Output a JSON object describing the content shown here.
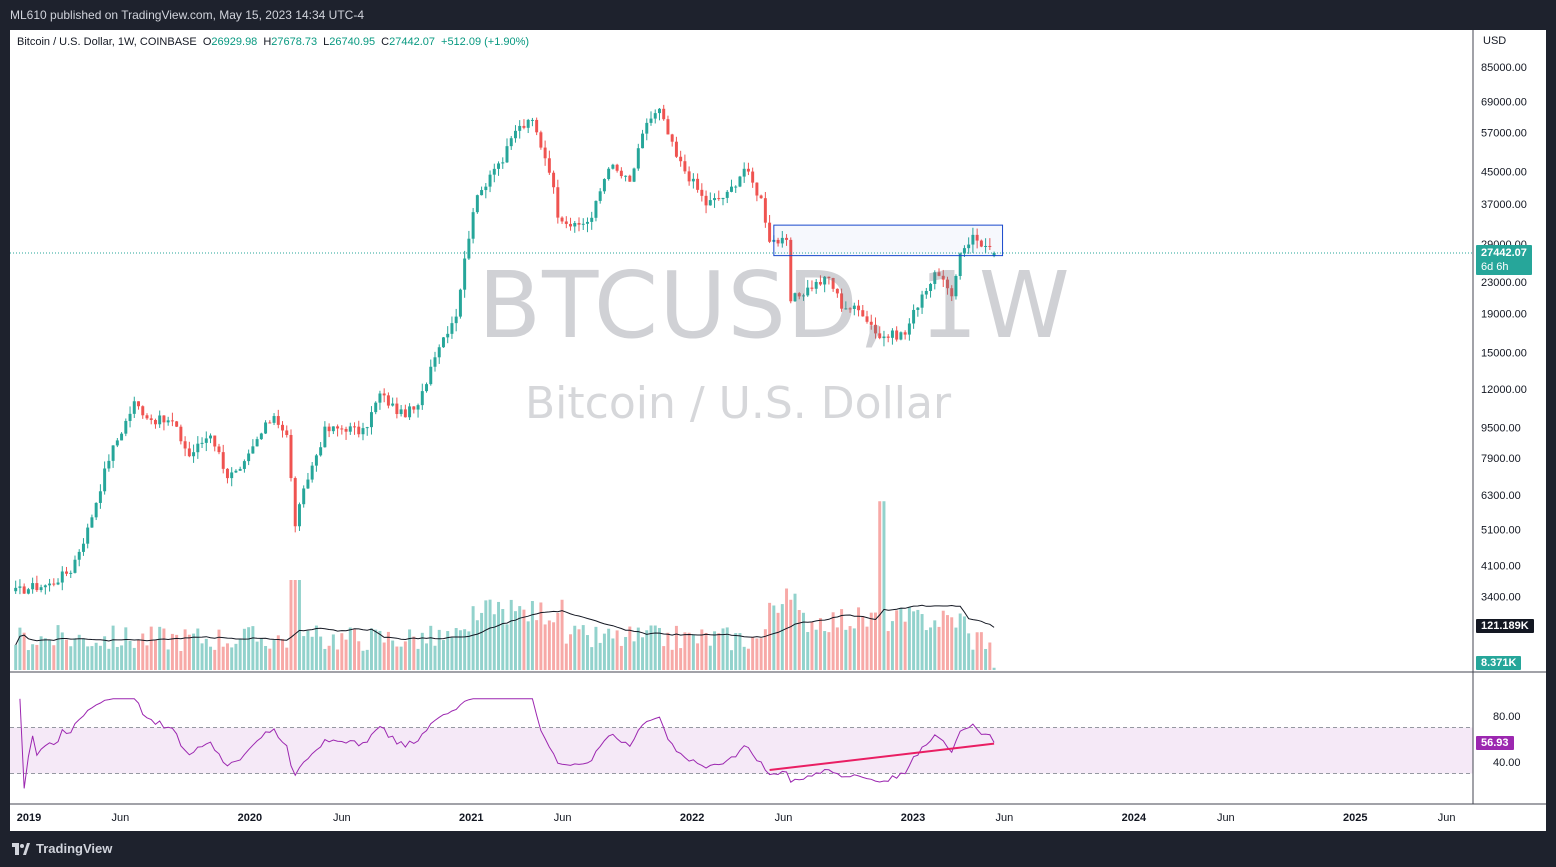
{
  "header": {
    "published": "ML610 published on TradingView.com, May 15, 2023 14:34 UTC-4"
  },
  "legend": {
    "symbol": "Bitcoin / U.S. Dollar, 1W, COINBASE",
    "open_label": "O",
    "open": "26929.98",
    "high_label": "H",
    "high": "27678.73",
    "low_label": "L",
    "low": "26740.95",
    "close_label": "C",
    "close": "27442.07",
    "change": "+512.09 (+1.90%)"
  },
  "watermark": {
    "symbol": "BTCUSD, 1W",
    "name": "Bitcoin / U.S. Dollar"
  },
  "axis": {
    "currency": "USD"
  },
  "badges": {
    "price": "27442.07",
    "countdown": "6d 6h",
    "volume_ma": "121.189K",
    "volume": "8.371K",
    "rsi": "56.93"
  },
  "footer": {
    "brand": "TradingView"
  },
  "colors": {
    "up": "#26a69a",
    "down": "#ef5350",
    "rsi": "#9c27b0",
    "box": "#1848cc",
    "trend": "#e91e63"
  },
  "chart_data": {
    "type": "candlestick",
    "title": "Bitcoin / U.S. Dollar, 1W, COINBASE",
    "ylabel": "USD",
    "y_scale": "log",
    "ylim": [
      2600,
      100000
    ],
    "price_ticks": [
      "85000.00",
      "69000.00",
      "57000.00",
      "45000.00",
      "37000.00",
      "29000.00",
      "23000.00",
      "19000.00",
      "15000.00",
      "12000.00",
      "9500.00",
      "7900.00",
      "6300.00",
      "5100.00",
      "4100.00",
      "3400.00"
    ],
    "time_ticks": [
      "2019",
      "Jun",
      "2020",
      "Jun",
      "2021",
      "Jun",
      "2022",
      "Jun",
      "2023",
      "Jun",
      "2024",
      "Jun",
      "2025",
      "Jun"
    ],
    "rsi_ticks": [
      "80.00",
      "40.00"
    ],
    "rsi_band": [
      30,
      70
    ],
    "close_anchors": [
      {
        "date": "2018-12-10",
        "close": 3500
      },
      {
        "date": "2019-01-07",
        "close": 3600
      },
      {
        "date": "2019-02-04",
        "close": 3650
      },
      {
        "date": "2019-03-11",
        "close": 4000
      },
      {
        "date": "2019-04-08",
        "close": 5100
      },
      {
        "date": "2019-05-13",
        "close": 7900
      },
      {
        "date": "2019-06-24",
        "close": 11000
      },
      {
        "date": "2019-07-22",
        "close": 10000
      },
      {
        "date": "2019-08-26",
        "close": 9800
      },
      {
        "date": "2019-09-23",
        "close": 8000
      },
      {
        "date": "2019-10-28",
        "close": 9200
      },
      {
        "date": "2019-11-25",
        "close": 7100
      },
      {
        "date": "2019-12-16",
        "close": 7200
      },
      {
        "date": "2020-01-13",
        "close": 8800
      },
      {
        "date": "2020-02-10",
        "close": 10300
      },
      {
        "date": "2020-03-02",
        "close": 9000
      },
      {
        "date": "2020-03-16",
        "close": 5300
      },
      {
        "date": "2020-04-06",
        "close": 7000
      },
      {
        "date": "2020-05-04",
        "close": 9300
      },
      {
        "date": "2020-06-08",
        "close": 9500
      },
      {
        "date": "2020-07-06",
        "close": 9200
      },
      {
        "date": "2020-08-03",
        "close": 11600
      },
      {
        "date": "2020-09-07",
        "close": 10300
      },
      {
        "date": "2020-10-05",
        "close": 10700
      },
      {
        "date": "2020-11-02",
        "close": 15000
      },
      {
        "date": "2020-12-07",
        "close": 19000
      },
      {
        "date": "2021-01-04",
        "close": 36000
      },
      {
        "date": "2021-02-08",
        "close": 47000
      },
      {
        "date": "2021-02-22",
        "close": 48000
      },
      {
        "date": "2021-03-15",
        "close": 58000
      },
      {
        "date": "2021-04-12",
        "close": 61000
      },
      {
        "date": "2021-05-10",
        "close": 46000
      },
      {
        "date": "2021-05-24",
        "close": 35000
      },
      {
        "date": "2021-06-21",
        "close": 32000
      },
      {
        "date": "2021-07-19",
        "close": 34000
      },
      {
        "date": "2021-08-16",
        "close": 47000
      },
      {
        "date": "2021-09-20",
        "close": 42000
      },
      {
        "date": "2021-10-18",
        "close": 61000
      },
      {
        "date": "2021-11-08",
        "close": 65000
      },
      {
        "date": "2021-12-06",
        "close": 49000
      },
      {
        "date": "2022-01-03",
        "close": 42000
      },
      {
        "date": "2022-01-24",
        "close": 37000
      },
      {
        "date": "2022-02-28",
        "close": 39000
      },
      {
        "date": "2022-03-28",
        "close": 46000
      },
      {
        "date": "2022-04-25",
        "close": 38000
      },
      {
        "date": "2022-05-09",
        "close": 30000
      },
      {
        "date": "2022-06-06",
        "close": 29000
      },
      {
        "date": "2022-06-13",
        "close": 20500
      },
      {
        "date": "2022-07-18",
        "close": 22500
      },
      {
        "date": "2022-08-15",
        "close": 23500
      },
      {
        "date": "2022-09-05",
        "close": 20000
      },
      {
        "date": "2022-10-10",
        "close": 19200
      },
      {
        "date": "2022-11-07",
        "close": 16500
      },
      {
        "date": "2022-12-19",
        "close": 16800
      },
      {
        "date": "2023-01-16",
        "close": 21500
      },
      {
        "date": "2023-02-13",
        "close": 24500
      },
      {
        "date": "2023-03-06",
        "close": 20500
      },
      {
        "date": "2023-03-20",
        "close": 27800
      },
      {
        "date": "2023-04-10",
        "close": 30300
      },
      {
        "date": "2023-05-01",
        "close": 28500
      },
      {
        "date": "2023-05-15",
        "close": 27442
      }
    ],
    "last_candle": {
      "date": "2023-05-15",
      "open": 26929.98,
      "high": 27678.73,
      "low": 26740.95,
      "close": 27442.07,
      "volume": 8371
    },
    "volume_ma_last": 121189,
    "rsi_last": 56.93,
    "drawings": [
      {
        "type": "rectangle",
        "from": "2022-05-16",
        "to": "2023-05-29",
        "price_low": 27000,
        "price_high": 32500
      },
      {
        "type": "trendline",
        "pane": "rsi",
        "from": {
          "date": "2022-05-09",
          "rsi": 33
        },
        "to": {
          "date": "2023-05-15",
          "rsi": 56
        }
      }
    ]
  }
}
